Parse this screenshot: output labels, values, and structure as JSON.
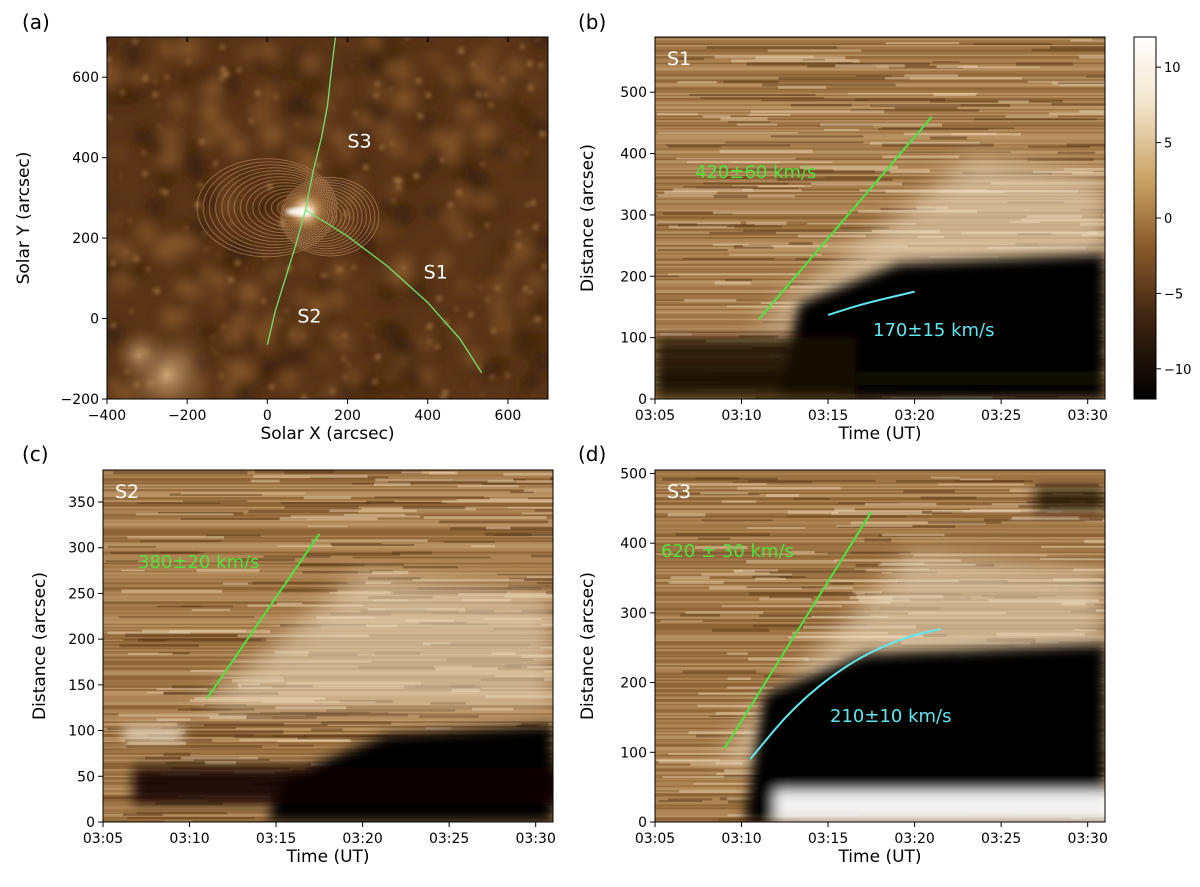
{
  "chart_data": [
    {
      "panel_label": "(a)",
      "type": "image",
      "xlabel": "Solar X (arcsec)",
      "ylabel": "Solar Y (arcsec)",
      "xlim": [
        -400,
        700
      ],
      "ylim": [
        -200,
        700
      ],
      "xticks": [
        -400,
        -200,
        0,
        200,
        400,
        600
      ],
      "yticks": [
        -200,
        0,
        200,
        400,
        600
      ],
      "xtick_labels": [
        "−400",
        "−200",
        "0",
        "200",
        "400",
        "600"
      ],
      "ytick_labels": [
        "−200",
        "0",
        "200",
        "400",
        "600"
      ],
      "slits": [
        {
          "name": "S1",
          "label_at": [
            420,
            100
          ],
          "points": [
            [
              95,
              270
            ],
            [
              200,
              205
            ],
            [
              300,
              130
            ],
            [
              400,
              40
            ],
            [
              480,
              -50
            ],
            [
              535,
              -135
            ]
          ]
        },
        {
          "name": "S2",
          "label_at": [
            105,
            -10
          ],
          "points": [
            [
              95,
              270
            ],
            [
              70,
              180
            ],
            [
              45,
              100
            ],
            [
              20,
              20
            ],
            [
              0,
              -65
            ]
          ]
        },
        {
          "name": "S3",
          "label_at": [
            230,
            425
          ],
          "points": [
            [
              95,
              270
            ],
            [
              115,
              370
            ],
            [
              135,
              450
            ],
            [
              150,
              530
            ],
            [
              160,
              620
            ],
            [
              170,
              700
            ]
          ]
        }
      ]
    },
    {
      "panel_label": "(b)",
      "type": "heatmap",
      "slit": "S1",
      "xlabel": "Time (UT)",
      "ylabel": "Distance (arcsec)",
      "xlim": [
        "03:05",
        "03:31"
      ],
      "ylim": [
        0,
        590
      ],
      "xticks": [
        "03:05",
        "03:10",
        "03:15",
        "03:20",
        "03:25",
        "03:30"
      ],
      "yticks": [
        0,
        100,
        200,
        300,
        400,
        500
      ],
      "fits": [
        {
          "label": "420±60  km/s",
          "color": "#4ee33a",
          "points": [
            [
              "03:11",
              130
            ],
            [
              "03:21",
              460
            ]
          ]
        },
        {
          "label": "170±15 km/s",
          "color": "#5ee8f0",
          "points": [
            [
              "03:15",
              137
            ],
            [
              "03:17",
              155
            ],
            [
              "03:20",
              175
            ]
          ]
        }
      ],
      "colorbar": {
        "ticks": [
          10,
          5,
          0,
          -5,
          -10
        ],
        "tick_labels": [
          "10",
          "5",
          "0",
          "−5",
          "−10"
        ],
        "range": [
          -12,
          12
        ]
      }
    },
    {
      "panel_label": "(c)",
      "type": "heatmap",
      "slit": "S2",
      "xlabel": "Time (UT)",
      "ylabel": "Distance (arcsec)",
      "xlim": [
        "03:05",
        "03:31"
      ],
      "ylim": [
        0,
        385
      ],
      "xticks": [
        "03:05",
        "03:10",
        "03:15",
        "03:20",
        "03:25",
        "03:30"
      ],
      "yticks": [
        0,
        50,
        100,
        150,
        200,
        250,
        300,
        350
      ],
      "fits": [
        {
          "label": "380±20 km/s",
          "color": "#4ee33a",
          "points": [
            [
              "03:11",
              135
            ],
            [
              "03:17.5",
              315
            ]
          ]
        }
      ]
    },
    {
      "panel_label": "(d)",
      "type": "heatmap",
      "slit": "S3",
      "xlabel": "Time (UT)",
      "ylabel": "Distance (arcsec)",
      "xlim": [
        "03:05",
        "03:31"
      ],
      "ylim": [
        0,
        505
      ],
      "xticks": [
        "03:05",
        "03:10",
        "03:15",
        "03:20",
        "03:25",
        "03:30"
      ],
      "yticks": [
        0,
        100,
        200,
        300,
        400,
        500
      ],
      "fits": [
        {
          "label": "620 ± 30 km/s",
          "color": "#4ee33a",
          "points": [
            [
              "03:09",
              105
            ],
            [
              "03:17.5",
              445
            ]
          ]
        },
        {
          "label": "210±10 km/s",
          "color": "#5ee8f0",
          "points": [
            [
              "03:10.5",
              90
            ],
            [
              "03:13",
              165
            ],
            [
              "03:16",
              225
            ],
            [
              "03:19",
              262
            ],
            [
              "03:21.5",
              277
            ]
          ]
        }
      ]
    }
  ]
}
